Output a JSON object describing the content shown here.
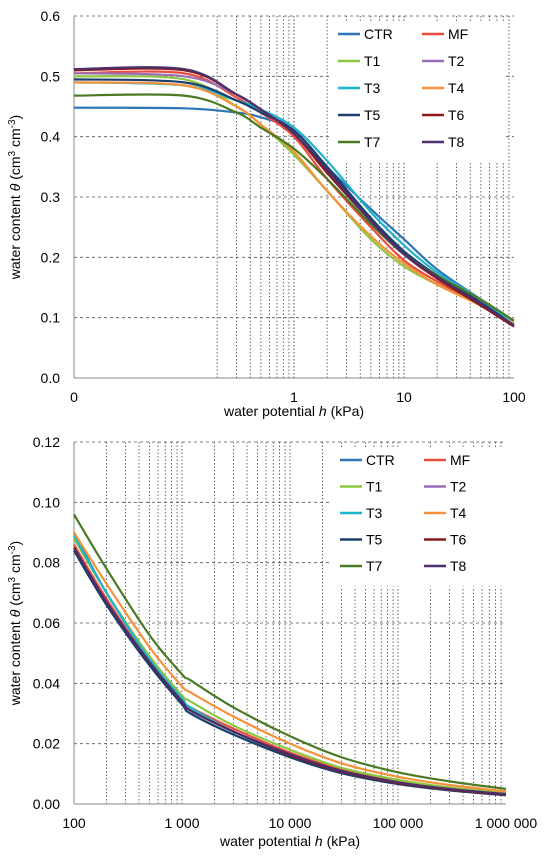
{
  "chart_data": [
    {
      "type": "line",
      "xscale": "log-with-zero",
      "xlim": [
        0,
        100
      ],
      "ylim": [
        0,
        0.6
      ],
      "xlabel_parts": [
        "water potential ",
        "h",
        " (kPa)"
      ],
      "ylabel_parts": [
        "water content ",
        "θ",
        " (cm",
        "3",
        " cm",
        "-3",
        ")"
      ],
      "xtick_labels": [
        "0",
        "1",
        "10",
        "100"
      ],
      "xtick_values": [
        0,
        1,
        10,
        100
      ],
      "ytick_labels": [
        "0.0",
        "0.1",
        "0.2",
        "0.3",
        "0.4",
        "0.5",
        "0.6"
      ],
      "ytick_values": [
        0,
        0.1,
        0.2,
        0.3,
        0.4,
        0.5,
        0.6
      ],
      "grid": "vertical dotted log grid, horizontal dashed",
      "legend": "top-right, 2 columns",
      "series": [
        {
          "name": "CTR",
          "color": "#2E75B6",
          "x": [
            0,
            0.1,
            0.3,
            0.5,
            1,
            2,
            5,
            10,
            20,
            50,
            100
          ],
          "y": [
            0.448,
            0.447,
            0.44,
            0.432,
            0.41,
            0.35,
            0.28,
            0.23,
            0.18,
            0.13,
            0.09
          ]
        },
        {
          "name": "MF",
          "color": "#E84C3D",
          "x": [
            0,
            0.1,
            0.3,
            0.5,
            1,
            2,
            5,
            10,
            20,
            50,
            100
          ],
          "y": [
            0.505,
            0.505,
            0.465,
            0.44,
            0.4,
            0.33,
            0.25,
            0.195,
            0.16,
            0.12,
            0.09
          ]
        },
        {
          "name": "T1",
          "color": "#8DC63F",
          "x": [
            0,
            0.1,
            0.3,
            0.5,
            1,
            2,
            5,
            10,
            20,
            50,
            100
          ],
          "y": [
            0.5,
            0.495,
            0.45,
            0.42,
            0.37,
            0.31,
            0.23,
            0.185,
            0.155,
            0.12,
            0.09
          ]
        },
        {
          "name": "T2",
          "color": "#9B6FB7",
          "x": [
            0,
            0.1,
            0.3,
            0.5,
            1,
            2,
            5,
            10,
            20,
            50,
            100
          ],
          "y": [
            0.505,
            0.5,
            0.47,
            0.445,
            0.41,
            0.35,
            0.265,
            0.21,
            0.17,
            0.125,
            0.09
          ]
        },
        {
          "name": "T3",
          "color": "#1FB5C9",
          "x": [
            0,
            0.1,
            0.3,
            0.5,
            1,
            2,
            5,
            10,
            20,
            50,
            100
          ],
          "y": [
            0.49,
            0.485,
            0.46,
            0.445,
            0.415,
            0.36,
            0.275,
            0.22,
            0.175,
            0.13,
            0.09
          ]
        },
        {
          "name": "T4",
          "color": "#F7923A",
          "x": [
            0,
            0.1,
            0.3,
            0.5,
            1,
            2,
            5,
            10,
            20,
            50,
            100
          ],
          "y": [
            0.49,
            0.485,
            0.45,
            0.42,
            0.375,
            0.31,
            0.235,
            0.19,
            0.155,
            0.12,
            0.09
          ]
        },
        {
          "name": "T5",
          "color": "#1B3F6B",
          "x": [
            0,
            0.1,
            0.3,
            0.5,
            1,
            2,
            5,
            10,
            20,
            50,
            100
          ],
          "y": [
            0.495,
            0.49,
            0.46,
            0.44,
            0.41,
            0.35,
            0.265,
            0.21,
            0.17,
            0.125,
            0.087
          ]
        },
        {
          "name": "T6",
          "color": "#8B1A1A",
          "x": [
            0,
            0.1,
            0.3,
            0.5,
            1,
            2,
            5,
            10,
            20,
            50,
            100
          ],
          "y": [
            0.51,
            0.51,
            0.47,
            0.445,
            0.405,
            0.34,
            0.26,
            0.205,
            0.165,
            0.12,
            0.085
          ]
        },
        {
          "name": "T7",
          "color": "#4A7A24",
          "x": [
            0,
            0.1,
            0.3,
            0.5,
            1,
            2,
            5,
            10,
            20,
            50,
            100
          ],
          "y": [
            0.468,
            0.468,
            0.44,
            0.415,
            0.38,
            0.33,
            0.255,
            0.205,
            0.17,
            0.13,
            0.095
          ]
        },
        {
          "name": "T8",
          "color": "#4B2E6B",
          "x": [
            0,
            0.1,
            0.3,
            0.5,
            1,
            2,
            5,
            10,
            20,
            50,
            100
          ],
          "y": [
            0.512,
            0.512,
            0.47,
            0.445,
            0.405,
            0.345,
            0.26,
            0.205,
            0.168,
            0.123,
            0.087
          ]
        }
      ]
    },
    {
      "type": "line",
      "xscale": "log",
      "xlim": [
        100,
        1000000
      ],
      "ylim": [
        0,
        0.12
      ],
      "xlabel_parts": [
        "water potential ",
        "h",
        " (kPa)"
      ],
      "ylabel_parts": [
        "water content ",
        "θ",
        " (cm",
        "3",
        " cm",
        "-3",
        ")"
      ],
      "xtick_labels": [
        "100",
        "1 000",
        "10 000",
        "100 000",
        "1 000 000"
      ],
      "xtick_values": [
        100,
        1000,
        10000,
        100000,
        1000000
      ],
      "ytick_labels": [
        "0.00",
        "0.02",
        "0.04",
        "0.06",
        "0.08",
        "0.10",
        "0.12"
      ],
      "ytick_values": [
        0,
        0.02,
        0.04,
        0.06,
        0.08,
        0.1,
        0.12
      ],
      "grid": "vertical dotted log grid, horizontal dashed",
      "legend": "top-right, 2 columns",
      "series": [
        {
          "name": "CTR",
          "color": "#2E75B6",
          "x": [
            100,
            200,
            500,
            1000,
            1200,
            3000,
            10000,
            30000,
            100000,
            300000,
            1000000
          ],
          "y": [
            0.09,
            0.07,
            0.048,
            0.034,
            0.031,
            0.024,
            0.016,
            0.0105,
            0.0068,
            0.0048,
            0.003
          ]
        },
        {
          "name": "MF",
          "color": "#E84C3D",
          "x": [
            100,
            200,
            500,
            1000,
            1200,
            3000,
            10000,
            30000,
            100000,
            300000,
            1000000
          ],
          "y": [
            0.086,
            0.068,
            0.047,
            0.034,
            0.032,
            0.025,
            0.017,
            0.0115,
            0.0075,
            0.0052,
            0.0035
          ]
        },
        {
          "name": "T1",
          "color": "#8DC63F",
          "x": [
            100,
            200,
            500,
            1000,
            1200,
            3000,
            10000,
            30000,
            100000,
            300000,
            1000000
          ],
          "y": [
            0.088,
            0.07,
            0.049,
            0.036,
            0.034,
            0.026,
            0.018,
            0.012,
            0.008,
            0.0055,
            0.0038
          ]
        },
        {
          "name": "T2",
          "color": "#9B6FB7",
          "x": [
            100,
            200,
            500,
            1000,
            1200,
            3000,
            10000,
            30000,
            100000,
            300000,
            1000000
          ],
          "y": [
            0.084,
            0.066,
            0.046,
            0.034,
            0.031,
            0.024,
            0.016,
            0.0108,
            0.007,
            0.0049,
            0.0032
          ]
        },
        {
          "name": "T3",
          "color": "#1FB5C9",
          "x": [
            100,
            200,
            500,
            1000,
            1200,
            3000,
            10000,
            30000,
            100000,
            300000,
            1000000
          ],
          "y": [
            0.089,
            0.07,
            0.048,
            0.035,
            0.032,
            0.024,
            0.016,
            0.0107,
            0.007,
            0.0049,
            0.0032
          ]
        },
        {
          "name": "T4",
          "color": "#F7923A",
          "x": [
            100,
            200,
            500,
            1000,
            1200,
            3000,
            10000,
            30000,
            100000,
            300000,
            1000000
          ],
          "y": [
            0.09,
            0.073,
            0.052,
            0.039,
            0.037,
            0.029,
            0.02,
            0.0135,
            0.009,
            0.0063,
            0.0042
          ]
        },
        {
          "name": "T5",
          "color": "#1B3F6B",
          "x": [
            100,
            200,
            500,
            1000,
            1200,
            3000,
            10000,
            30000,
            100000,
            300000,
            1000000
          ],
          "y": [
            0.084,
            0.066,
            0.046,
            0.033,
            0.03,
            0.023,
            0.0155,
            0.0102,
            0.0066,
            0.0045,
            0.0029
          ]
        },
        {
          "name": "T6",
          "color": "#8B1A1A",
          "x": [
            100,
            200,
            500,
            1000,
            1200,
            3000,
            10000,
            30000,
            100000,
            300000,
            1000000
          ],
          "y": [
            0.085,
            0.067,
            0.047,
            0.034,
            0.031,
            0.024,
            0.0162,
            0.0108,
            0.007,
            0.0048,
            0.0031
          ]
        },
        {
          "name": "T7",
          "color": "#4A7A24",
          "x": [
            100,
            200,
            500,
            1000,
            1200,
            3000,
            10000,
            30000,
            100000,
            300000,
            1000000
          ],
          "y": [
            0.096,
            0.078,
            0.056,
            0.043,
            0.041,
            0.032,
            0.0225,
            0.0155,
            0.0105,
            0.0075,
            0.005
          ]
        },
        {
          "name": "T8",
          "color": "#4B2E6B",
          "x": [
            100,
            200,
            500,
            1000,
            1200,
            3000,
            10000,
            30000,
            100000,
            300000,
            1000000
          ],
          "y": [
            0.085,
            0.067,
            0.047,
            0.034,
            0.031,
            0.024,
            0.0165,
            0.011,
            0.0072,
            0.005,
            0.0033
          ]
        }
      ]
    }
  ]
}
